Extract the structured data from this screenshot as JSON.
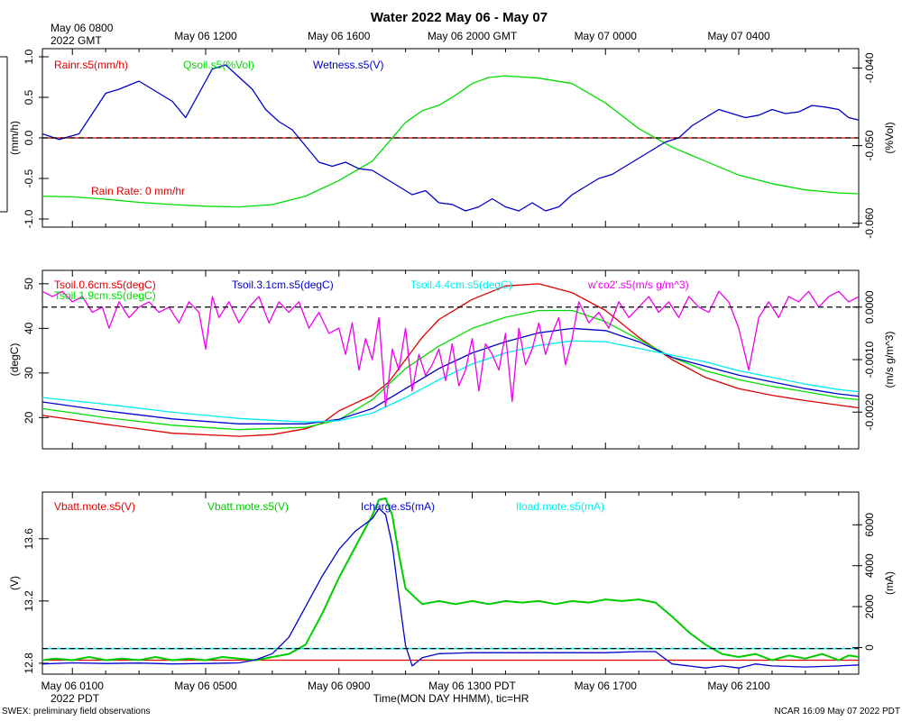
{
  "title": "Water 2022 May 06 - May 07",
  "top_axis": {
    "origin_label_line1": "May 06 0800",
    "origin_label_line2": "2022 GMT",
    "ticks": [
      "May 06 1200",
      "May 06 1600",
      "May 06 2000 GMT",
      "May 07 0000",
      "May 07 0400"
    ]
  },
  "bottom_axis": {
    "ticks": [
      "May 06 0100",
      "May 06 0500",
      "May 06 0900",
      "May 06 1300 PDT",
      "May 06 1700",
      "May 06 2100"
    ],
    "year_label": "2022 PDT",
    "xlabel": "Time(MON DAY HHMM), tic=HR"
  },
  "footer": {
    "left": "SWEX: preliminary field observations",
    "right": "NCAR 16:09 May 07 2022 PDT"
  },
  "chart_data": [
    {
      "type": "line",
      "panel": "water",
      "x_unit": "hours since May 06 0000 PDT",
      "xlim": [
        0.1,
        24.6
      ],
      "left_axis": {
        "label": "(mm/h)",
        "ylim": [
          -1.1,
          1.1
        ],
        "ticks": [
          "1.0",
          "0.5",
          "0.0",
          "-0.5",
          "-1.0"
        ],
        "tick_values": [
          1.0,
          0.5,
          0.0,
          -0.5,
          -1.0
        ]
      },
      "right_axis": {
        "label": "(%Vol)",
        "ylim": [
          -0.0605,
          -0.0375
        ],
        "ticks": [
          "-0.040",
          "-0.050",
          "-0.060"
        ],
        "tick_values": [
          -0.04,
          -0.05,
          -0.06
        ]
      },
      "legend": [
        "Rainr.s5(mm/h)",
        "Qsoil.s5(%Vol)",
        "Wetness.s5(V)"
      ],
      "annotation": "Rain Rate: 0 mm/hr",
      "series": [
        {
          "name": "Rainr.s5(mm/h)",
          "axis": "left",
          "color": "#e00000",
          "x": [
            0.1,
            24.6
          ],
          "y": [
            0.0,
            0.0
          ]
        },
        {
          "name": "Qsoil.s5(%Vol)",
          "axis": "right",
          "color": "#00dd00",
          "x": [
            0.1,
            1,
            2,
            3,
            4,
            5,
            6,
            7,
            8,
            9,
            10,
            10.5,
            11,
            11.5,
            12,
            12.5,
            13,
            13.5,
            14,
            15,
            16,
            17,
            18,
            19,
            20,
            21,
            22,
            23,
            24,
            24.6
          ],
          "y": [
            -0.0565,
            -0.0566,
            -0.0569,
            -0.0573,
            -0.0576,
            -0.0578,
            -0.0579,
            -0.0576,
            -0.0565,
            -0.0545,
            -0.052,
            -0.0495,
            -0.047,
            -0.0455,
            -0.0448,
            -0.0435,
            -0.042,
            -0.0412,
            -0.041,
            -0.0413,
            -0.042,
            -0.0445,
            -0.0478,
            -0.0502,
            -0.052,
            -0.0538,
            -0.0549,
            -0.0557,
            -0.0561,
            -0.0562
          ]
        },
        {
          "name": "Wetness.s5(V)",
          "axis": "left",
          "color": "#0000cc",
          "x": [
            0.1,
            0.6,
            1.2,
            1.6,
            2.0,
            2.4,
            3.0,
            3.4,
            4.0,
            4.4,
            4.8,
            5.2,
            5.6,
            6.0,
            6.4,
            6.8,
            7.2,
            7.6,
            8.0,
            8.4,
            8.8,
            9.2,
            9.6,
            10.0,
            10.4,
            10.8,
            11.2,
            11.6,
            12.0,
            12.4,
            12.8,
            13.2,
            13.6,
            14.0,
            14.4,
            14.8,
            15.2,
            15.6,
            16.0,
            16.4,
            16.8,
            17.2,
            17.6,
            18.0,
            18.4,
            18.8,
            19.2,
            19.6,
            20.0,
            20.4,
            20.8,
            21.2,
            21.6,
            22.0,
            22.4,
            22.8,
            23.2,
            23.6,
            24.0,
            24.3,
            24.6
          ],
          "y": [
            0.05,
            -0.02,
            0.05,
            0.3,
            0.55,
            0.6,
            0.7,
            0.6,
            0.45,
            0.25,
            0.55,
            0.85,
            0.9,
            0.75,
            0.6,
            0.35,
            0.2,
            0.1,
            -0.1,
            -0.3,
            -0.35,
            -0.3,
            -0.38,
            -0.4,
            -0.5,
            -0.6,
            -0.7,
            -0.65,
            -0.8,
            -0.82,
            -0.9,
            -0.85,
            -0.75,
            -0.85,
            -0.9,
            -0.8,
            -0.9,
            -0.85,
            -0.7,
            -0.6,
            -0.5,
            -0.45,
            -0.35,
            -0.25,
            -0.15,
            -0.05,
            0.0,
            0.15,
            0.25,
            0.35,
            0.3,
            0.25,
            0.28,
            0.35,
            0.3,
            0.32,
            0.4,
            0.38,
            0.35,
            0.25,
            0.22
          ]
        }
      ],
      "reference_line": {
        "axis": "left",
        "value": 0.0,
        "style": "dashed",
        "color": "#000000"
      }
    },
    {
      "type": "line",
      "panel": "soil-temperature-flux",
      "x_unit": "hours since May 06 0000 PDT",
      "xlim": [
        0.1,
        24.6
      ],
      "left_axis": {
        "label": "(degC)",
        "ylim": [
          13,
          53
        ],
        "ticks": [
          "50",
          "40",
          "30",
          "20"
        ],
        "tick_values": [
          50,
          40,
          30,
          20
        ]
      },
      "right_axis": {
        "label": "(m/s g/m^3)",
        "ylim": [
          -0.0027,
          0.0007
        ],
        "ticks": [
          "0.0000",
          "-0.0010",
          "-0.0020"
        ],
        "tick_values": [
          0.0,
          -0.001,
          -0.002
        ]
      },
      "legend": [
        "Tsoil.0.6cm.s5(degC)",
        "Tsoil.1.9cm.s5(degC)",
        "Tsoil.3.1cm.s5(degC)",
        "Tsoil.4.4cm.s5(degC)",
        "w'co2'.s5(m/s g/m^3)"
      ],
      "series": [
        {
          "name": "Tsoil.0.6cm.s5(degC)",
          "axis": "left",
          "color": "#e00000",
          "x": [
            0.1,
            2,
            4,
            6,
            7,
            8,
            8.5,
            9,
            10,
            10.5,
            11,
            11.5,
            12,
            13,
            14,
            15,
            16,
            17,
            18,
            19,
            20,
            21,
            22,
            23,
            24,
            24.6
          ],
          "y": [
            20.5,
            18.5,
            16.5,
            15.8,
            16.2,
            17.5,
            18.8,
            21.5,
            25,
            28,
            33,
            38,
            42,
            46.5,
            49.5,
            50,
            48,
            44,
            38,
            33,
            29,
            26.5,
            25,
            23.8,
            22.8,
            22.2
          ]
        },
        {
          "name": "Tsoil.1.9cm.s5(degC)",
          "axis": "left",
          "color": "#00dd00",
          "x": [
            0.1,
            2,
            4,
            6,
            8,
            9,
            10,
            11,
            12,
            13,
            14,
            15,
            16,
            17,
            18,
            19,
            20,
            21,
            22,
            23,
            24,
            24.6
          ],
          "y": [
            22,
            20,
            18.3,
            17.3,
            17.8,
            19.5,
            24,
            31,
            36,
            40,
            42.5,
            44,
            44,
            41.5,
            37.5,
            33.5,
            30.5,
            28.5,
            27,
            25.8,
            24.5,
            24
          ]
        },
        {
          "name": "Tsoil.3.1cm.s5(degC)",
          "axis": "left",
          "color": "#0000cc",
          "x": [
            0.1,
            2,
            4,
            6,
            8,
            9,
            10,
            11,
            12,
            13,
            14,
            15,
            16,
            17,
            18,
            19,
            20,
            21,
            22,
            23,
            24,
            24.6
          ],
          "y": [
            23.5,
            21.5,
            19.7,
            18.6,
            18.6,
            19.6,
            22,
            26.5,
            31,
            34.5,
            37,
            39,
            40,
            39.5,
            37,
            33.5,
            31.5,
            29.5,
            28,
            26.5,
            25.3,
            24.8
          ]
        },
        {
          "name": "Tsoil.4.4cm.s5(degC)",
          "axis": "left",
          "color": "#00eeee",
          "x": [
            0.1,
            2,
            4,
            6,
            8,
            9,
            10,
            11,
            12,
            13,
            14,
            15,
            16,
            17,
            18,
            19,
            20,
            21,
            22,
            23,
            24,
            24.6
          ],
          "y": [
            24.5,
            23,
            21.2,
            19.8,
            19,
            19.3,
            21,
            24.5,
            28.5,
            32,
            34.5,
            36.2,
            37.2,
            37,
            35.5,
            34,
            32.5,
            30.5,
            29,
            27.5,
            26.3,
            25.8
          ]
        },
        {
          "name": "w'co2'.s5(m/s g/m^3)",
          "axis": "right",
          "color": "#ee00ee",
          "x": [
            0.1,
            0.4,
            0.7,
            1.0,
            1.3,
            1.6,
            1.9,
            2.1,
            2.4,
            2.7,
            3.0,
            3.3,
            3.6,
            3.9,
            4.2,
            4.5,
            4.8,
            5.0,
            5.2,
            5.4,
            5.7,
            6.0,
            6.3,
            6.6,
            6.9,
            7.2,
            7.5,
            7.8,
            8.1,
            8.4,
            8.7,
            9.0,
            9.2,
            9.4,
            9.6,
            9.8,
            10.0,
            10.2,
            10.4,
            10.6,
            10.8,
            11.0,
            11.2,
            11.4,
            11.6,
            11.8,
            12.0,
            12.2,
            12.4,
            12.6,
            12.8,
            13.0,
            13.2,
            13.4,
            13.6,
            13.8,
            14.0,
            14.2,
            14.4,
            14.6,
            14.8,
            15.0,
            15.2,
            15.4,
            15.6,
            15.8,
            16.0,
            16.2,
            16.5,
            16.8,
            17.1,
            17.4,
            17.7,
            18.0,
            18.3,
            18.6,
            18.9,
            19.2,
            19.5,
            19.8,
            20.1,
            20.4,
            20.7,
            21.0,
            21.3,
            21.6,
            21.9,
            22.2,
            22.5,
            22.8,
            23.1,
            23.4,
            23.7,
            24.0,
            24.3,
            24.6
          ],
          "y": [
            0.0003,
            0.0002,
            0.0003,
            0.0001,
            0.0002,
            -0.0001,
            0.0,
            -0.0004,
            0.0001,
            -0.0002,
            0.0,
            0.0001,
            -0.0001,
            0.0,
            -0.0003,
            0.0001,
            -0.0001,
            -0.0008,
            0.0002,
            -0.0002,
            0.0001,
            -0.0003,
            0.0,
            0.0002,
            -0.0003,
            0.0001,
            -0.0001,
            0.0001,
            -0.0004,
            -0.0001,
            -0.0005,
            -0.0004,
            -0.0009,
            -0.0003,
            -0.0012,
            -0.0006,
            -0.001,
            -0.0002,
            -0.0019,
            -0.0008,
            -0.0012,
            -0.0004,
            -0.0016,
            -0.0009,
            -0.0013,
            -0.0011,
            -0.0008,
            -0.0014,
            -0.0007,
            -0.0015,
            -0.0012,
            -0.0006,
            -0.0016,
            -0.0007,
            -0.0009,
            -0.0012,
            -0.0005,
            -0.0018,
            -0.0004,
            -0.0011,
            -0.0008,
            -0.0003,
            -0.0009,
            -0.0005,
            -0.0002,
            -0.0011,
            -0.0006,
            0.0001,
            -0.0003,
            -0.0001,
            -0.0004,
            0.0001,
            -0.0002,
            0.0,
            0.0002,
            -0.0001,
            0.0001,
            -0.0002,
            0.0002,
            0.0,
            -0.0001,
            0.0003,
            0.0001,
            -0.0004,
            -0.0012,
            -0.0002,
            0.0001,
            -0.0002,
            0.0002,
            0.0001,
            0.0003,
            0.0,
            0.0002,
            0.0003,
            0.0001,
            0.0002
          ]
        }
      ],
      "reference_line": {
        "axis": "right",
        "value": 0.0,
        "style": "dashed",
        "color": "#000000"
      }
    },
    {
      "type": "line",
      "panel": "battery",
      "x_unit": "hours since May 06 0000 PDT",
      "xlim": [
        0.1,
        24.6
      ],
      "left_axis": {
        "label": "(V)",
        "ylim": [
          12.73,
          13.9
        ],
        "ticks": [
          "13.6",
          "13.2",
          "12.8"
        ],
        "tick_values": [
          13.6,
          13.2,
          12.8
        ]
      },
      "right_axis": {
        "label": "(mA)",
        "ylim": [
          -1300,
          7600
        ],
        "ticks": [
          "6000",
          "4000",
          "2000",
          "0"
        ],
        "tick_values": [
          6000,
          4000,
          2000,
          0
        ]
      },
      "legend": [
        "Vbatt.mote.s5(V)",
        "Vbatt.mote.s5(V)",
        "Icharge.s5(mA)",
        "Iload.mote.s5(mA)"
      ],
      "series": [
        {
          "name": "Vbatt.mote.s5(V)",
          "axis": "left",
          "color": "#e00000",
          "x": [
            0.1,
            24.6
          ],
          "y": [
            12.82,
            12.82
          ]
        },
        {
          "name": "Vbatt.mote.s5(V)",
          "axis": "left",
          "color": "#00cc00",
          "x": [
            0.1,
            0.5,
            1.0,
            1.5,
            2.0,
            2.5,
            3.0,
            3.5,
            4.0,
            4.5,
            5.0,
            5.5,
            6.0,
            6.5,
            7.0,
            7.5,
            8.0,
            8.5,
            9.0,
            9.5,
            10.0,
            10.2,
            10.4,
            10.6,
            10.8,
            11.0,
            11.5,
            12.0,
            12.5,
            13.0,
            13.5,
            14.0,
            14.5,
            15.0,
            15.5,
            16.0,
            16.5,
            17.0,
            17.5,
            18.0,
            18.5,
            19.0,
            19.5,
            20.0,
            20.5,
            21.0,
            21.5,
            22.0,
            22.5,
            23.0,
            23.5,
            24.0,
            24.3,
            24.6
          ],
          "y": [
            12.82,
            12.83,
            12.82,
            12.84,
            12.82,
            12.83,
            12.82,
            12.84,
            12.82,
            12.83,
            12.82,
            12.84,
            12.83,
            12.82,
            12.84,
            12.86,
            12.92,
            13.12,
            13.35,
            13.55,
            13.75,
            13.85,
            13.86,
            13.75,
            13.5,
            13.28,
            13.18,
            13.2,
            13.18,
            13.2,
            13.18,
            13.2,
            13.19,
            13.2,
            13.18,
            13.2,
            13.19,
            13.21,
            13.2,
            13.21,
            13.19,
            13.1,
            13.0,
            12.92,
            12.86,
            12.84,
            12.86,
            12.82,
            12.85,
            12.83,
            12.86,
            12.82,
            12.85,
            12.84
          ]
        },
        {
          "name": "Icharge.s5(mA)",
          "axis": "right",
          "color": "#0000cc",
          "x": [
            0.1,
            1,
            2,
            3,
            4,
            5,
            6,
            6.5,
            7,
            7.5,
            8,
            8.5,
            9,
            9.5,
            10,
            10.2,
            10.4,
            10.6,
            10.8,
            11.0,
            11.2,
            11.5,
            12,
            13,
            14,
            15,
            16,
            17,
            18,
            18.5,
            19,
            19.5,
            20,
            20.5,
            21,
            21.5,
            22,
            23,
            24,
            24.6
          ],
          "y": [
            -800,
            -750,
            -780,
            -760,
            -800,
            -780,
            -750,
            -600,
            -300,
            500,
            2000,
            3500,
            4800,
            5700,
            6300,
            6800,
            6500,
            5000,
            2500,
            100,
            -900,
            -500,
            -300,
            -250,
            -250,
            -250,
            -250,
            -250,
            -200,
            -200,
            -800,
            -900,
            -1000,
            -900,
            -1000,
            -800,
            -900,
            -950,
            -900,
            -850
          ]
        },
        {
          "name": "Iload.mote.s5(mA)",
          "axis": "right",
          "color": "#00eeee",
          "x": [
            0.1,
            24.6
          ],
          "y": [
            -50,
            -50
          ]
        }
      ],
      "reference_line": {
        "axis": "right",
        "value": -50,
        "style": "dashed",
        "color": "#000000"
      }
    }
  ]
}
